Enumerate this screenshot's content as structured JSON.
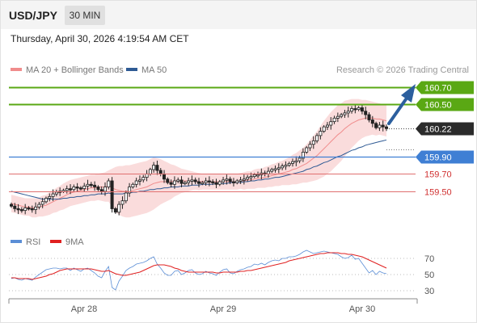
{
  "header": {
    "symbol": "USD/JPY",
    "timeframe": "30 MIN",
    "datetime": "Thursday, April 30, 2026 4:19:54 AM CET"
  },
  "legend": {
    "items": [
      {
        "label": "MA 20 + Bollinger Bands",
        "color": "#f08c8c"
      },
      {
        "label": "MA 50",
        "color": "#2e5a94"
      }
    ],
    "credit": "Research © 2026 Trading Central"
  },
  "colors": {
    "resistance": "#5aa814",
    "support": "#3f7fd4",
    "target_red": "#e07070",
    "bollinger_fill": "#fadcdc",
    "ma20": "#f08c8c",
    "ma50": "#2e5a94",
    "candle_up": "#ffffff",
    "candle_down": "#222222",
    "arrow": "#2c5f9e",
    "rsi": "#5b8ed6",
    "rsi_ma": "#e02020"
  },
  "chart_data": [
    {
      "type": "candlestick",
      "x_labels": [
        "Apr 28",
        "Apr 29",
        "Apr 30"
      ],
      "y_range": [
        159.1,
        160.77
      ],
      "ma20_label": "MA 20 + Bollinger Bands",
      "ma50_label": "MA 50",
      "levels": [
        {
          "value": 160.7,
          "label": "160.70",
          "kind": "resistance"
        },
        {
          "value": 160.5,
          "label": "160.50",
          "kind": "resistance"
        },
        {
          "value": 160.22,
          "label": "160.22",
          "kind": "last_price"
        },
        {
          "value": 159.9,
          "label": "159.90",
          "kind": "support"
        },
        {
          "value": 159.7,
          "label": "159.70",
          "kind": "target"
        },
        {
          "value": 159.5,
          "label": "159.50",
          "kind": "target"
        }
      ],
      "close": [
        159.33,
        159.3,
        159.29,
        159.28,
        159.31,
        159.3,
        159.29,
        159.32,
        159.35,
        159.38,
        159.42,
        159.44,
        159.47,
        159.49,
        159.5,
        159.51,
        159.53,
        159.52,
        159.55,
        159.54,
        159.53,
        159.56,
        159.58,
        159.57,
        159.55,
        159.52,
        159.5,
        159.55,
        159.62,
        159.3,
        159.26,
        159.35,
        159.39,
        159.48,
        159.55,
        159.58,
        159.62,
        159.63,
        159.66,
        159.7,
        159.75,
        159.8,
        159.74,
        159.7,
        159.64,
        159.6,
        159.58,
        159.62,
        159.63,
        159.59,
        159.6,
        159.62,
        159.63,
        159.61,
        159.59,
        159.6,
        159.62,
        159.61,
        159.6,
        159.58,
        159.61,
        159.63,
        159.64,
        159.61,
        159.6,
        159.62,
        159.63,
        159.64,
        159.66,
        159.67,
        159.69,
        159.69,
        159.71,
        159.7,
        159.73,
        159.75,
        159.76,
        159.77,
        159.79,
        159.8,
        159.82,
        159.84,
        159.85,
        159.88,
        159.95,
        160.0,
        160.04,
        160.08,
        160.14,
        160.19,
        160.24,
        160.26,
        160.3,
        160.34,
        160.36,
        160.38,
        160.4,
        160.42,
        160.45,
        160.44,
        160.46,
        160.42,
        160.38,
        160.32,
        160.28,
        160.23,
        160.26,
        160.24,
        160.22
      ],
      "ma20": [
        159.36,
        159.35,
        159.34,
        159.33,
        159.32,
        159.32,
        159.31,
        159.31,
        159.32,
        159.33,
        159.34,
        159.36,
        159.38,
        159.4,
        159.42,
        159.44,
        159.46,
        159.48,
        159.49,
        159.5,
        159.51,
        159.52,
        159.53,
        159.54,
        159.54,
        159.55,
        159.55,
        159.55,
        159.56,
        159.54,
        159.52,
        159.51,
        159.5,
        159.5,
        159.5,
        159.51,
        159.52,
        159.53,
        159.54,
        159.55,
        159.57,
        159.59,
        159.6,
        159.61,
        159.61,
        159.61,
        159.61,
        159.62,
        159.62,
        159.62,
        159.62,
        159.62,
        159.62,
        159.62,
        159.61,
        159.61,
        159.61,
        159.61,
        159.61,
        159.61,
        159.61,
        159.61,
        159.61,
        159.61,
        159.61,
        159.61,
        159.62,
        159.62,
        159.63,
        159.63,
        159.64,
        159.65,
        159.65,
        159.66,
        159.67,
        159.68,
        159.69,
        159.7,
        159.71,
        159.72,
        159.73,
        159.75,
        159.76,
        159.78,
        159.8,
        159.82,
        159.85,
        159.88,
        159.91,
        159.95,
        159.99,
        160.03,
        160.07,
        160.11,
        160.15,
        160.18,
        160.22,
        160.25,
        160.28,
        160.3,
        160.32,
        160.33,
        160.34,
        160.34,
        160.34,
        160.33,
        160.33,
        160.32,
        160.31
      ],
      "ma50": [
        159.5,
        159.49,
        159.48,
        159.47,
        159.46,
        159.45,
        159.44,
        159.43,
        159.42,
        159.41,
        159.41,
        159.41,
        159.41,
        159.41,
        159.41,
        159.42,
        159.42,
        159.43,
        159.43,
        159.44,
        159.44,
        159.45,
        159.45,
        159.46,
        159.46,
        159.47,
        159.47,
        159.47,
        159.48,
        159.47,
        159.47,
        159.47,
        159.47,
        159.48,
        159.48,
        159.49,
        159.49,
        159.5,
        159.5,
        159.51,
        159.52,
        159.52,
        159.53,
        159.53,
        159.54,
        159.54,
        159.55,
        159.55,
        159.55,
        159.56,
        159.56,
        159.56,
        159.57,
        159.57,
        159.57,
        159.58,
        159.58,
        159.58,
        159.58,
        159.59,
        159.59,
        159.59,
        159.59,
        159.6,
        159.6,
        159.6,
        159.6,
        159.61,
        159.61,
        159.62,
        159.62,
        159.63,
        159.63,
        159.64,
        159.64,
        159.65,
        159.66,
        159.66,
        159.67,
        159.68,
        159.69,
        159.7,
        159.71,
        159.72,
        159.73,
        159.75,
        159.76,
        159.78,
        159.79,
        159.81,
        159.83,
        159.84,
        159.86,
        159.88,
        159.9,
        159.91,
        159.93,
        159.95,
        159.97,
        159.98,
        160.0,
        160.01,
        160.03,
        160.04,
        160.05,
        160.06,
        160.07,
        160.08,
        160.09
      ],
      "band_width": [
        0.1,
        0.1,
        0.1,
        0.1,
        0.1,
        0.1,
        0.11,
        0.11,
        0.11,
        0.12,
        0.12,
        0.13,
        0.13,
        0.14,
        0.14,
        0.15,
        0.15,
        0.15,
        0.15,
        0.15,
        0.15,
        0.15,
        0.15,
        0.15,
        0.15,
        0.15,
        0.16,
        0.17,
        0.18,
        0.22,
        0.26,
        0.28,
        0.29,
        0.3,
        0.3,
        0.3,
        0.3,
        0.3,
        0.3,
        0.3,
        0.3,
        0.3,
        0.28,
        0.26,
        0.24,
        0.22,
        0.2,
        0.18,
        0.16,
        0.14,
        0.13,
        0.12,
        0.11,
        0.1,
        0.1,
        0.09,
        0.09,
        0.09,
        0.09,
        0.09,
        0.09,
        0.09,
        0.09,
        0.09,
        0.09,
        0.09,
        0.09,
        0.1,
        0.1,
        0.1,
        0.11,
        0.11,
        0.11,
        0.12,
        0.12,
        0.13,
        0.13,
        0.14,
        0.14,
        0.15,
        0.16,
        0.17,
        0.18,
        0.19,
        0.2,
        0.22,
        0.24,
        0.26,
        0.28,
        0.3,
        0.32,
        0.33,
        0.34,
        0.34,
        0.34,
        0.33,
        0.32,
        0.3,
        0.28,
        0.26,
        0.24,
        0.22,
        0.21,
        0.2,
        0.19,
        0.19,
        0.18,
        0.18,
        0.18
      ]
    },
    {
      "type": "line",
      "legend": [
        {
          "label": "RSI",
          "color": "#5b8ed6"
        },
        {
          "label": "9MA",
          "color": "#e02020"
        }
      ],
      "y_ticks": [
        70,
        50,
        30
      ],
      "y_range": [
        25,
        80
      ],
      "rsi": [
        45,
        46,
        44,
        43,
        45,
        44,
        43,
        47,
        50,
        53,
        56,
        57,
        58,
        58,
        57,
        58,
        58,
        55,
        58,
        56,
        54,
        57,
        58,
        55,
        52,
        48,
        46,
        54,
        60,
        34,
        31,
        42,
        48,
        55,
        58,
        60,
        63,
        64,
        65,
        67,
        70,
        72,
        63,
        58,
        52,
        49,
        49,
        54,
        55,
        50,
        52,
        55,
        56,
        52,
        50,
        51,
        54,
        52,
        51,
        49,
        53,
        56,
        57,
        52,
        51,
        54,
        56,
        57,
        59,
        60,
        63,
        62,
        64,
        62,
        65,
        67,
        68,
        67,
        70,
        70,
        72,
        72,
        73,
        75,
        78,
        80,
        78,
        76,
        77,
        78,
        79,
        78,
        77,
        76,
        75,
        72,
        70,
        71,
        74,
        69,
        70,
        64,
        58,
        52,
        55,
        50,
        54,
        52,
        51
      ],
      "ma9": [
        46,
        46,
        45,
        45,
        45,
        45,
        44,
        45,
        46,
        47,
        48,
        50,
        51,
        53,
        55,
        56,
        57,
        57,
        57,
        57,
        57,
        57,
        57,
        57,
        56,
        55,
        54,
        54,
        55,
        53,
        51,
        50,
        49,
        49,
        50,
        51,
        52,
        53,
        55,
        57,
        59,
        61,
        62,
        62,
        62,
        61,
        60,
        58,
        57,
        55,
        54,
        53,
        53,
        53,
        53,
        53,
        53,
        53,
        53,
        52,
        52,
        53,
        53,
        53,
        53,
        53,
        54,
        54,
        55,
        55,
        56,
        57,
        58,
        59,
        60,
        61,
        62,
        63,
        64,
        65,
        67,
        68,
        69,
        70,
        71,
        72,
        73,
        74,
        75,
        76,
        76,
        77,
        77,
        77,
        77,
        76,
        76,
        75,
        75,
        74,
        73,
        72,
        70,
        68,
        66,
        64,
        62,
        60,
        58
      ]
    }
  ]
}
